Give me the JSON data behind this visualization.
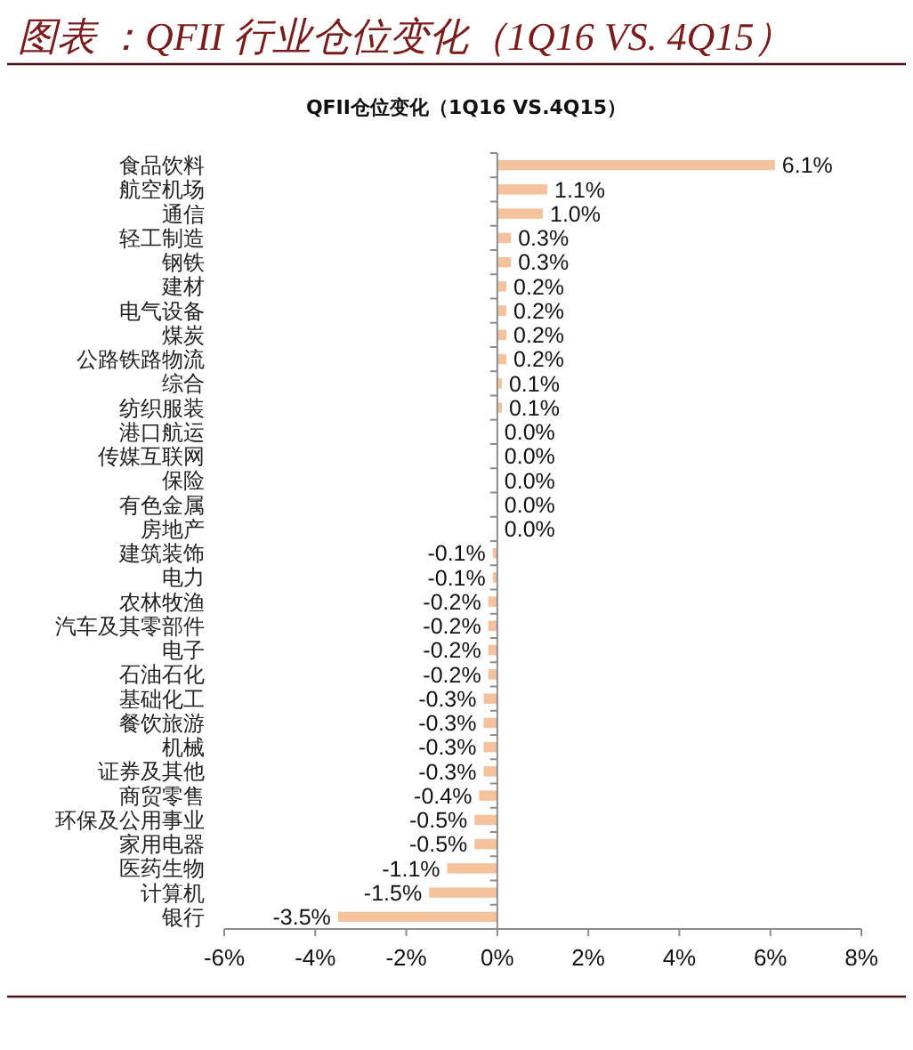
{
  "chart_data": {
    "type": "bar",
    "orientation": "horizontal",
    "title": "图表 ：QFII 行业仓位变化（1Q16 VS. 4Q15）",
    "subtitle": "QFII仓位变化（1Q16 VS.4Q15）",
    "categories": [
      "食品饮料",
      "航空机场",
      "通信",
      "轻工制造",
      "钢铁",
      "建材",
      "电气设备",
      "煤炭",
      "公路铁路物流",
      "综合",
      "纺织服装",
      "港口航运",
      "传媒互联网",
      "保险",
      "有色金属",
      "房地产",
      "建筑装饰",
      "电力",
      "农林牧渔",
      "汽车及其零部件",
      "电子",
      "石油石化",
      "基础化工",
      "餐饮旅游",
      "机械",
      "证券及其他",
      "商贸零售",
      "环保及公用事业",
      "家用电器",
      "医药生物",
      "计算机",
      "银行"
    ],
    "values": [
      6.1,
      1.1,
      1.0,
      0.3,
      0.3,
      0.2,
      0.2,
      0.2,
      0.2,
      0.1,
      0.1,
      0.0,
      0.0,
      0.0,
      0.0,
      0.0,
      -0.1,
      -0.1,
      -0.2,
      -0.2,
      -0.2,
      -0.2,
      -0.3,
      -0.3,
      -0.3,
      -0.3,
      -0.4,
      -0.5,
      -0.5,
      -1.1,
      -1.5,
      -3.5
    ],
    "value_labels": [
      "6.1%",
      "1.1%",
      "1.0%",
      "0.3%",
      "0.3%",
      "0.2%",
      "0.2%",
      "0.2%",
      "0.2%",
      "0.1%",
      "0.1%",
      "0.0%",
      "0.0%",
      "0.0%",
      "0.0%",
      "0.0%",
      "-0.1%",
      "-0.1%",
      "-0.2%",
      "-0.2%",
      "-0.2%",
      "-0.2%",
      "-0.3%",
      "-0.3%",
      "-0.3%",
      "-0.3%",
      "-0.4%",
      "-0.5%",
      "-0.5%",
      "-1.1%",
      "-1.5%",
      "-3.5%"
    ],
    "color": "#f4c29c",
    "xlim": [
      -6,
      8
    ],
    "xticks": [
      {
        "value": -6,
        "label": "-6%"
      },
      {
        "value": -4,
        "label": "-4%"
      },
      {
        "value": -2,
        "label": "-2%"
      },
      {
        "value": 0,
        "label": "0%"
      },
      {
        "value": 2,
        "label": "2%"
      },
      {
        "value": 4,
        "label": "4%"
      },
      {
        "value": 6,
        "label": "6%"
      },
      {
        "value": 8,
        "label": "8%"
      }
    ]
  }
}
